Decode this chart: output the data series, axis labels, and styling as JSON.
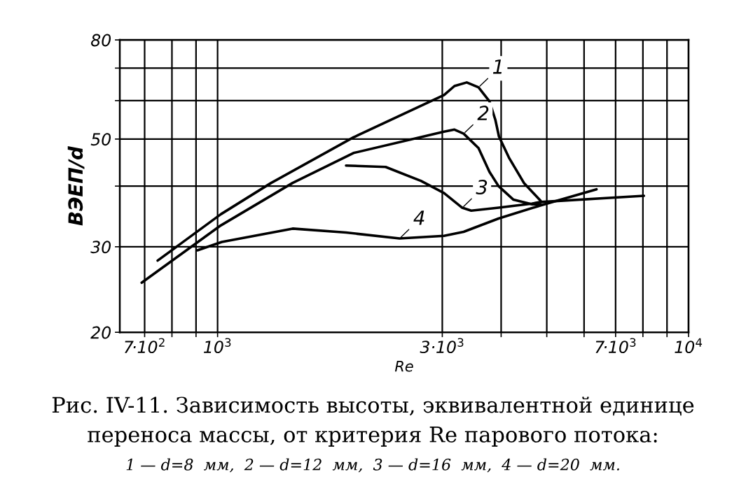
{
  "chart_data": {
    "type": "line",
    "xlabel": "Re",
    "ylabel": "ВЭЕП/d",
    "log": "xy",
    "grid": true,
    "legend": false,
    "marker": "none",
    "line_style": "solid",
    "xlim": [
      620,
      10000
    ],
    "xticks": [
      {
        "value": 700,
        "label": "7·10$^{2}$"
      },
      {
        "value": 800,
        "label": null
      },
      {
        "value": 900,
        "label": null
      },
      {
        "value": 1000,
        "label": "10$^{3}$"
      },
      {
        "value": 3000,
        "label": "3·10$^{3}$"
      },
      {
        "value": 4000,
        "label": null
      },
      {
        "value": 5000,
        "label": null
      },
      {
        "value": 6000,
        "label": null
      },
      {
        "value": 7000,
        "label": "7·10$^{3}$"
      },
      {
        "value": 8000,
        "label": null
      },
      {
        "value": 9000,
        "label": null
      },
      {
        "value": 10000,
        "label": "10$^{4}$"
      }
    ],
    "ylim": [
      20,
      80
    ],
    "yticks": [
      20,
      30,
      {
        "value": 40,
        "label": null
      },
      50,
      {
        "value": 60,
        "label": null
      },
      {
        "value": 70,
        "label": null
      },
      80
    ],
    "series": [
      {
        "color": "#000000",
        "x": [
          746,
          1016,
          1299,
          1943,
          3026,
          3184,
          3381,
          3581,
          3778,
          3888,
          3958,
          4155,
          4472,
          4853
        ],
        "values": [
          28.1,
          35.0,
          40.6,
          50.4,
          61.6,
          64.3,
          65.4,
          63.9,
          59.8,
          54.8,
          50.6,
          45.8,
          40.6,
          37.3
        ]
      },
      {
        "color": "#000000",
        "x": [
          690,
          1016,
          1443,
          1943,
          3026,
          3184,
          3330,
          3581,
          3778,
          3949,
          4249,
          4643,
          4853
        ],
        "values": [
          25.3,
          33.2,
          40.6,
          46.8,
          51.8,
          52.3,
          51.3,
          47.9,
          42.8,
          40.0,
          37.5,
          36.7,
          36.7
        ]
      },
      {
        "color": "#000000",
        "x": [
          1874,
          2274,
          2702,
          3026,
          3307,
          3456,
          3949,
          4643,
          4853,
          8041
        ],
        "values": [
          44.1,
          43.8,
          41.0,
          38.7,
          36.1,
          35.6,
          36.1,
          36.8,
          37.1,
          38.2
        ]
      },
      {
        "color": "#000000",
        "x": [
          906,
          1021,
          1443,
          1874,
          2434,
          3026,
          3330,
          3949,
          4853,
          6375
        ],
        "values": [
          29.5,
          30.7,
          32.7,
          32.1,
          31.2,
          31.6,
          32.2,
          34.3,
          36.5,
          39.4
        ]
      }
    ],
    "annotations": [
      {
        "text": "1",
        "x": 3581,
        "y": 63.9
      },
      {
        "text": "2",
        "x": 3330,
        "y": 51.3
      },
      {
        "text": "3",
        "x": 3307,
        "y": 36.1
      },
      {
        "text": "4",
        "x": 2434,
        "y": 31.2
      },
      "Рис. IV-11. Зависимость высоты, эквивалентной единице",
      "переноса массы, от критерия Re парового потока:",
      "1 — d=8  мм,  2 — d=12  мм,  3 — d=16  мм,  4 — d=20  мм."
    ]
  }
}
